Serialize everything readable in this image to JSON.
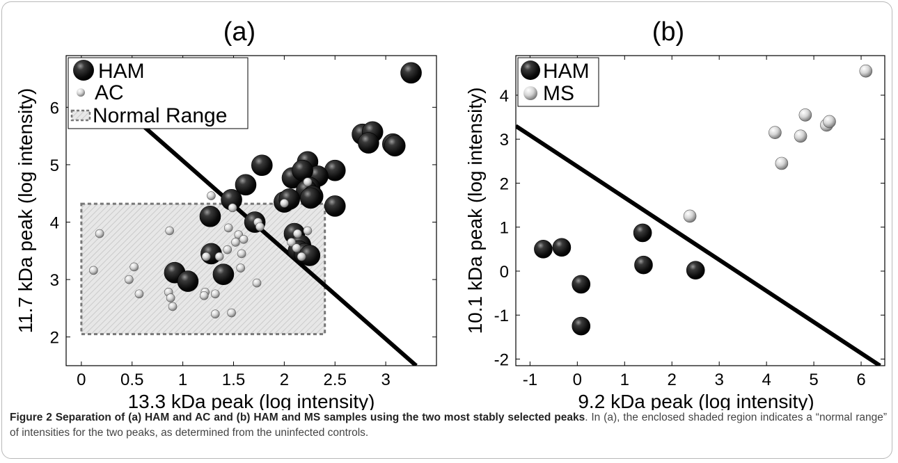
{
  "chart_data": [
    {
      "type": "scatter",
      "title": "(a)",
      "xlabel": "13.3 kDa peak (log intensity)",
      "ylabel": "11.7 kDa peak (log intensity)",
      "xlim": [
        -0.15,
        3.5
      ],
      "ylim": [
        1.5,
        6.9
      ],
      "xticks": [
        "0",
        "0.5",
        "1",
        "1.5",
        "2",
        "2.5",
        "3"
      ],
      "yticks": [
        "2",
        "3",
        "4",
        "5",
        "6"
      ],
      "legend": [
        "HAM",
        "AC",
        "Normal Range"
      ],
      "legend_position": "top-left",
      "grid": false,
      "normal_range": {
        "x": [
          0,
          2.4
        ],
        "y": [
          2.05,
          4.32
        ]
      },
      "separating_line": {
        "x": [
          0.4,
          3.3
        ],
        "y": [
          6.0,
          1.5
        ]
      },
      "series": [
        {
          "name": "HAM",
          "color": "#111111",
          "points": [
            [
              3.25,
              6.6
            ],
            [
              2.77,
              5.53
            ],
            [
              2.87,
              5.57
            ],
            [
              2.83,
              5.38
            ],
            [
              3.07,
              5.36
            ],
            [
              3.09,
              5.33
            ],
            [
              2.5,
              4.9
            ],
            [
              2.23,
              5.05
            ],
            [
              2.33,
              4.8
            ],
            [
              1.78,
              4.99
            ],
            [
              2.08,
              4.77
            ],
            [
              2.18,
              4.9
            ],
            [
              1.62,
              4.65
            ],
            [
              2.25,
              4.6
            ],
            [
              2.22,
              4.55
            ],
            [
              2.28,
              4.45
            ],
            [
              2.26,
              4.42
            ],
            [
              2.5,
              4.28
            ],
            [
              2.0,
              4.35
            ],
            [
              2.05,
              4.4
            ],
            [
              1.48,
              4.39
            ],
            [
              1.71,
              4.0
            ],
            [
              1.27,
              4.1
            ],
            [
              2.1,
              3.8
            ],
            [
              2.16,
              3.6
            ],
            [
              2.14,
              3.5
            ],
            [
              2.2,
              3.45
            ],
            [
              2.25,
              3.42
            ],
            [
              1.28,
              3.45
            ],
            [
              0.92,
              3.12
            ],
            [
              1.05,
              2.97
            ],
            [
              1.4,
              3.09
            ]
          ]
        },
        {
          "name": "AC",
          "color": "#d0d0d0",
          "points": [
            [
              0.18,
              3.8
            ],
            [
              0.12,
              3.16
            ],
            [
              0.52,
              3.22
            ],
            [
              0.47,
              3.0
            ],
            [
              0.57,
              2.75
            ],
            [
              0.87,
              3.85
            ],
            [
              0.86,
              2.78
            ],
            [
              0.88,
              2.68
            ],
            [
              0.9,
              2.53
            ],
            [
              1.22,
              2.78
            ],
            [
              1.21,
              2.72
            ],
            [
              1.32,
              2.75
            ],
            [
              1.32,
              2.4
            ],
            [
              1.48,
              2.42
            ],
            [
              1.73,
              2.94
            ],
            [
              1.28,
              4.46
            ],
            [
              1.49,
              4.25
            ],
            [
              2.0,
              4.33
            ],
            [
              2.23,
              4.7
            ],
            [
              1.45,
              3.9
            ],
            [
              1.55,
              3.78
            ],
            [
              1.6,
              3.7
            ],
            [
              1.52,
              3.65
            ],
            [
              1.58,
              3.45
            ],
            [
              1.44,
              3.52
            ],
            [
              1.36,
              3.4
            ],
            [
              1.23,
              3.4
            ],
            [
              1.57,
              3.2
            ],
            [
              1.74,
              4.0
            ],
            [
              1.76,
              3.92
            ],
            [
              2.13,
              3.8
            ],
            [
              2.23,
              3.85
            ],
            [
              2.07,
              3.65
            ],
            [
              2.12,
              3.55
            ],
            [
              2.17,
              3.4
            ]
          ]
        }
      ]
    },
    {
      "type": "scatter",
      "title": "(b)",
      "xlabel": "9.2 kDa peak (log intensity)",
      "ylabel": "10.1 kDa peak (log intensity)",
      "xlim": [
        -1.3,
        6.5
      ],
      "ylim": [
        -2.15,
        4.9
      ],
      "xticks": [
        "-1",
        "0",
        "1",
        "2",
        "3",
        "4",
        "5",
        "6"
      ],
      "yticks": [
        "-2",
        "-1",
        "0",
        "1",
        "2",
        "3",
        "4"
      ],
      "legend": [
        "HAM",
        "MS"
      ],
      "legend_position": "top-left",
      "grid": false,
      "separating_line": {
        "x": [
          -1.3,
          6.4
        ],
        "y": [
          3.3,
          -2.15
        ]
      },
      "series": [
        {
          "name": "HAM",
          "color": "#111111",
          "points": [
            [
              -0.72,
              0.5
            ],
            [
              -0.33,
              0.54
            ],
            [
              1.38,
              0.87
            ],
            [
              1.4,
              0.14
            ],
            [
              2.5,
              0.02
            ],
            [
              0.08,
              -0.3
            ],
            [
              0.08,
              -1.25
            ]
          ]
        },
        {
          "name": "MS",
          "color": "#d0d0d0",
          "points": [
            [
              2.38,
              1.25
            ],
            [
              4.18,
              3.15
            ],
            [
              4.32,
              2.45
            ],
            [
              4.72,
              3.07
            ],
            [
              4.82,
              3.55
            ],
            [
              5.27,
              3.32
            ],
            [
              5.33,
              3.4
            ],
            [
              6.1,
              4.55
            ]
          ]
        }
      ]
    }
  ],
  "caption": {
    "bold": "Figure 2 Separation of (a) HAM and AC and (b) HAM and MS samples using the two most stably selected peaks",
    "text": ". In (a), the enclosed shaded region indicates a “normal range” of intensities for the two peaks, as determined from the uninfected controls."
  }
}
